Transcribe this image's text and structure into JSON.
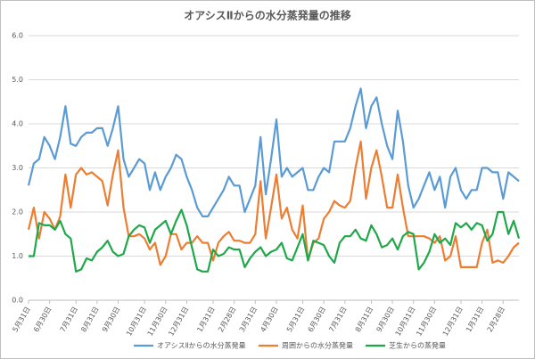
{
  "chart_data": {
    "type": "line",
    "title": "オアシスⅡからの水分蒸発量の推移",
    "categories": [
      "5月31日",
      null,
      null,
      null,
      "6月30日",
      null,
      null,
      null,
      null,
      "7月31日",
      null,
      null,
      null,
      "8月31日",
      null,
      null,
      null,
      "9月30日",
      null,
      null,
      null,
      null,
      "10月31日",
      null,
      null,
      null,
      "11月30日",
      null,
      null,
      null,
      "12月31日",
      null,
      null,
      null,
      null,
      "1月31日",
      null,
      null,
      null,
      "2月28日",
      null,
      null,
      null,
      "3月31日",
      null,
      null,
      null,
      "4月30日",
      null,
      null,
      null,
      null,
      "5月31日",
      null,
      null,
      null,
      "6月30日",
      null,
      null,
      null,
      "7月31日",
      null,
      null,
      null,
      null,
      "8月31日",
      null,
      null,
      null,
      "9月30日",
      null,
      null,
      null,
      "10月31日",
      null,
      null,
      null,
      "11月30日",
      null,
      null,
      null,
      null,
      "12月31日",
      null,
      null,
      null,
      "1月31日",
      null,
      null,
      null,
      "2月28日",
      null,
      null,
      null
    ],
    "series": [
      {
        "name": "オアシスⅡからの水分蒸発量",
        "color": "#5b9bd5",
        "values": [
          2.6,
          3.1,
          3.2,
          3.7,
          3.5,
          3.2,
          3.7,
          4.4,
          3.55,
          3.5,
          3.7,
          3.8,
          3.8,
          3.9,
          3.9,
          3.5,
          3.9,
          4.4,
          3.2,
          2.8,
          3.0,
          3.2,
          3.1,
          2.5,
          2.9,
          2.5,
          2.8,
          3.0,
          3.3,
          3.2,
          2.8,
          2.5,
          2.1,
          1.9,
          1.9,
          2.1,
          2.3,
          2.5,
          2.8,
          2.6,
          2.6,
          2.0,
          2.3,
          2.6,
          3.7,
          2.4,
          3.2,
          4.1,
          2.8,
          3.0,
          2.8,
          2.9,
          3.0,
          2.5,
          2.5,
          2.8,
          3.0,
          2.9,
          3.6,
          3.6,
          3.6,
          3.9,
          4.4,
          4.8,
          3.9,
          4.4,
          4.6,
          4.0,
          3.5,
          3.2,
          4.3,
          3.6,
          2.6,
          2.1,
          2.3,
          2.6,
          2.9,
          2.5,
          2.8,
          2.1,
          2.8,
          3.0,
          2.5,
          2.3,
          2.5,
          2.5,
          3.0,
          3.0,
          2.9,
          2.9,
          2.3,
          2.9,
          2.8,
          2.7
        ]
      },
      {
        "name": "周囲からの水分蒸発量",
        "color": "#ed7d31",
        "values": [
          1.6,
          2.1,
          1.4,
          2.0,
          1.85,
          1.6,
          1.9,
          2.85,
          2.1,
          2.85,
          3.0,
          2.85,
          2.9,
          2.8,
          2.7,
          2.15,
          2.85,
          3.4,
          2.1,
          1.45,
          1.45,
          1.5,
          1.4,
          1.15,
          1.3,
          0.8,
          1.0,
          1.5,
          1.5,
          1.15,
          1.3,
          1.3,
          1.45,
          1.3,
          1.3,
          0.9,
          1.3,
          1.45,
          1.55,
          1.35,
          1.35,
          1.3,
          1.3,
          1.5,
          2.7,
          1.4,
          2.1,
          2.85,
          1.85,
          2.1,
          1.6,
          1.4,
          2.15,
          0.9,
          1.3,
          1.4,
          1.85,
          2.0,
          2.25,
          2.15,
          2.1,
          2.25,
          3.0,
          3.6,
          2.3,
          3.0,
          3.4,
          2.8,
          2.1,
          2.1,
          2.85,
          2.1,
          1.45,
          1.45,
          1.45,
          1.45,
          1.4,
          1.3,
          1.45,
          0.9,
          1.0,
          1.45,
          0.75,
          0.75,
          0.75,
          0.75,
          1.3,
          1.6,
          0.85,
          0.9,
          0.85,
          1.0,
          1.2,
          1.3
        ]
      },
      {
        "name": "芝生からの蒸発量",
        "color": "#1fa84a",
        "values": [
          1.0,
          1.0,
          1.75,
          1.7,
          1.7,
          1.6,
          1.8,
          1.5,
          1.4,
          0.65,
          0.7,
          0.95,
          0.9,
          1.1,
          1.2,
          1.35,
          1.1,
          1.0,
          1.05,
          1.45,
          1.6,
          1.7,
          1.65,
          1.3,
          1.6,
          1.7,
          1.8,
          1.5,
          1.8,
          2.05,
          1.7,
          1.2,
          0.7,
          0.65,
          0.65,
          1.15,
          1.0,
          1.05,
          1.2,
          1.15,
          1.15,
          0.75,
          0.95,
          1.1,
          1.2,
          1.0,
          1.1,
          1.15,
          1.3,
          0.95,
          0.9,
          1.2,
          1.5,
          0.9,
          1.35,
          1.3,
          1.25,
          1.0,
          0.85,
          1.3,
          1.45,
          1.45,
          1.6,
          1.4,
          1.35,
          1.7,
          1.5,
          1.2,
          1.25,
          1.4,
          1.15,
          1.45,
          1.55,
          1.5,
          0.7,
          0.85,
          1.1,
          1.5,
          1.3,
          1.4,
          1.25,
          1.75,
          1.65,
          1.75,
          1.6,
          1.75,
          1.7,
          1.35,
          1.5,
          2.0,
          2.0,
          1.5,
          1.8,
          1.4
        ]
      }
    ],
    "ylim": [
      0,
      6
    ],
    "yticks": [
      {
        "value": 0,
        "label": "0.0"
      },
      {
        "value": 1,
        "label": "1.0"
      },
      {
        "value": 2,
        "label": "2.0"
      },
      {
        "value": 3,
        "label": "3.0"
      },
      {
        "value": 4,
        "label": "4.0"
      },
      {
        "value": 5,
        "label": "5.0"
      },
      {
        "value": 6,
        "label": "6.0"
      }
    ],
    "grid": true
  }
}
